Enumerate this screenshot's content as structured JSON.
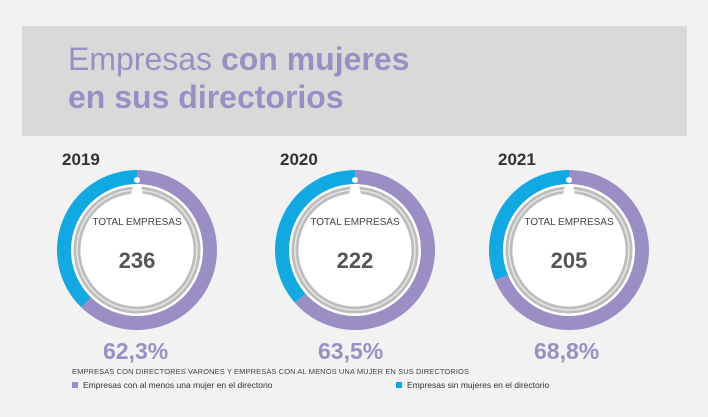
{
  "title": {
    "light": "Empresas ",
    "bold1": "con mujeres",
    "bold2": "en sus directorios"
  },
  "colors": {
    "purple": "#9b8ec4",
    "blue": "#10a9e2",
    "gray": "#bdbdbd"
  },
  "icon": "woman-icon",
  "chart_data": {
    "type": "pie",
    "center_label": "TOTAL EMPRESAS",
    "years": [
      "2019",
      "2020",
      "2021"
    ],
    "totals": [
      236,
      222,
      205
    ],
    "series": [
      {
        "name": "Empresas con al menos una mujer en el directorio",
        "values": [
          62.3,
          63.5,
          68.8
        ]
      },
      {
        "name": "Empresas sin mujeres en el directorio",
        "values": [
          37.7,
          36.5,
          31.2
        ]
      }
    ],
    "pct_labels": [
      "62,3%",
      "63,5%",
      "68,8%"
    ]
  },
  "caption": "EMPRESAS CON DIRECTORES VARONES Y EMPRESAS CON AL MENOS UNA MUJER EN SUS DIRECTORIOS",
  "legend": [
    {
      "label": "Empresas con al menos una mujer en el directorio",
      "color": "#9b8ec4"
    },
    {
      "label": "Empresas sin mujeres en el directorio",
      "color": "#10a9e2"
    }
  ]
}
